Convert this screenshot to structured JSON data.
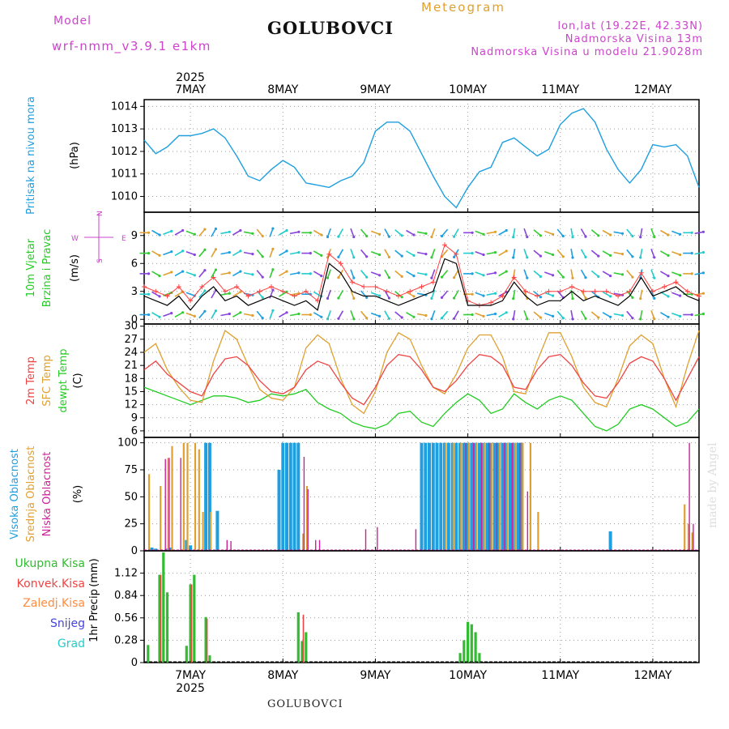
{
  "header": {
    "model_label": "Model",
    "model_name": "wrf-nmm_v3.9.1  e1km",
    "title": "GOLUBOVCI",
    "meteogram": "Meteogram",
    "lonlat": "lon,lat (19.22E, 42.33N)",
    "elevation": "Nadmorska Visina 13m",
    "model_elevation": "Nadmorska Visina u modelu 21.9028m",
    "footer_title": "GOLUBOVCI",
    "credit": "made by Angel"
  },
  "colors": {
    "pressure": "#1e9fe0",
    "wind_speed": "#000000",
    "wind_gust": "#ff4040",
    "temp2m": "#ee4444",
    "sfc_temp": "#e0a030",
    "dewpoint": "#22cc22",
    "cloud_high": "#1e9fe0",
    "cloud_mid": "#e0a030",
    "cloud_low": "#cc2299",
    "rain_total": "#33bb33",
    "rain_conv": "#ee4444",
    "frz": "#ff8c40",
    "snow": "#4444dd",
    "hail": "#22cccc",
    "ylabel_magenta": "#cc44cc"
  },
  "chart_data": [
    {
      "type": "line",
      "panel": "pressure",
      "ylabel_main": "Pritisak na nivou mora",
      "ylabel_unit": "(hPa)",
      "yticks": [
        1010,
        1011,
        1012,
        1013,
        1014
      ],
      "ylim": [
        1009.3,
        1014.3
      ],
      "xlim": [
        0,
        144
      ],
      "x_top_year": "2025",
      "x_ticks": [
        {
          "x": 12,
          "label": "7MAY"
        },
        {
          "x": 36,
          "label": "8MAY"
        },
        {
          "x": 60,
          "label": "9MAY"
        },
        {
          "x": 84,
          "label": "10MAY"
        },
        {
          "x": 108,
          "label": "11MAY"
        },
        {
          "x": 132,
          "label": "12MAY"
        }
      ],
      "x": [
        0,
        3,
        6,
        9,
        12,
        15,
        18,
        21,
        24,
        27,
        30,
        33,
        36,
        39,
        42,
        45,
        48,
        51,
        54,
        57,
        60,
        63,
        66,
        69,
        72,
        75,
        78,
        81,
        84,
        87,
        90,
        93,
        96,
        99,
        102,
        105,
        108,
        111,
        114,
        117,
        120,
        123,
        126,
        129,
        132,
        135,
        138,
        141,
        144
      ],
      "values": [
        1012.5,
        1011.9,
        1012.2,
        1012.7,
        1012.7,
        1012.8,
        1013.0,
        1012.6,
        1011.8,
        1010.9,
        1010.7,
        1011.2,
        1011.6,
        1011.3,
        1010.6,
        1010.5,
        1010.4,
        1010.7,
        1010.9,
        1011.5,
        1012.9,
        1013.3,
        1013.3,
        1012.9,
        1011.9,
        1010.9,
        1010.0,
        1009.5,
        1010.4,
        1011.1,
        1011.3,
        1012.4,
        1012.6,
        1012.2,
        1011.8,
        1012.1,
        1013.2,
        1013.7,
        1013.9,
        1013.3,
        1012.1,
        1011.2,
        1010.6,
        1011.2,
        1012.3,
        1012.2,
        1012.3,
        1011.8,
        1010.4
      ]
    },
    {
      "type": "line",
      "panel": "wind",
      "ylabel_main": "10m Vjetar",
      "ylabel_sub": "Brzina i Pravac",
      "ylabel_unit": "(m/s)",
      "compass": {
        "n": "N",
        "w": "W",
        "e": "E",
        "s": "S"
      },
      "yticks": [
        0,
        3,
        6,
        9
      ],
      "ylim": [
        -0.5,
        11.5
      ],
      "xlim": [
        0,
        144
      ],
      "series": [
        {
          "name": "speed",
          "x": [
            0,
            3,
            6,
            9,
            12,
            15,
            18,
            21,
            24,
            27,
            30,
            33,
            36,
            39,
            42,
            45,
            48,
            51,
            54,
            57,
            60,
            63,
            66,
            69,
            72,
            75,
            78,
            81,
            84,
            87,
            90,
            93,
            96,
            99,
            102,
            105,
            108,
            111,
            114,
            117,
            120,
            123,
            126,
            129,
            132,
            135,
            138,
            141,
            144
          ],
          "values": [
            2.5,
            2.0,
            1.5,
            2.5,
            1.0,
            2.5,
            3.5,
            2.0,
            2.5,
            1.5,
            2.0,
            2.5,
            2.0,
            1.5,
            2.0,
            1.0,
            6.0,
            5.0,
            3.0,
            2.5,
            2.5,
            2.0,
            1.5,
            2.0,
            2.5,
            3.0,
            6.5,
            6.0,
            1.5,
            1.5,
            1.5,
            2.0,
            4.0,
            2.5,
            1.5,
            2.0,
            2.0,
            3.0,
            2.0,
            2.5,
            2.0,
            1.5,
            2.5,
            4.5,
            2.5,
            3.0,
            3.5,
            2.5,
            2.0
          ]
        },
        {
          "name": "gust",
          "x": [
            0,
            3,
            6,
            9,
            12,
            15,
            18,
            21,
            24,
            27,
            30,
            33,
            36,
            39,
            42,
            45,
            48,
            51,
            54,
            57,
            60,
            63,
            66,
            69,
            72,
            75,
            78,
            81,
            84,
            87,
            90,
            93,
            96,
            99,
            102,
            105,
            108,
            111,
            114,
            117,
            120,
            123,
            126,
            129,
            132,
            135,
            138,
            141,
            144
          ],
          "values": [
            3.5,
            3.0,
            2.5,
            3.5,
            2.0,
            3.5,
            4.5,
            3.0,
            3.5,
            2.5,
            3.0,
            3.5,
            3.0,
            2.5,
            3.0,
            2.0,
            7.0,
            6.0,
            4.0,
            3.5,
            3.5,
            3.0,
            2.5,
            3.0,
            3.5,
            4.0,
            8.0,
            7.0,
            2.0,
            1.5,
            1.8,
            2.5,
            4.5,
            3.0,
            2.5,
            3.0,
            3.0,
            3.5,
            3.0,
            3.0,
            3.0,
            2.5,
            3.0,
            5.0,
            3.0,
            3.5,
            4.0,
            3.0,
            2.5
          ]
        }
      ],
      "direction_deg": [
        90,
        120,
        70,
        60,
        110,
        40,
        30,
        80,
        60,
        100,
        140,
        20,
        60,
        80,
        90,
        120,
        200,
        210,
        160,
        140,
        110,
        150,
        130,
        120,
        100,
        200,
        220,
        210,
        90,
        110,
        80,
        60,
        190,
        160,
        130,
        110,
        140,
        170,
        150,
        130,
        120,
        100,
        140,
        190,
        160,
        120,
        110,
        90,
        80
      ]
    },
    {
      "type": "line",
      "panel": "temperature",
      "ylabel_main": "2m Temp",
      "ylabel_sub": "SFC Temp",
      "ylabel_sub2": "dewpt Temp",
      "ylabel_unit": "(C)",
      "yticks": [
        6,
        9,
        12,
        15,
        18,
        21,
        24,
        27,
        30
      ],
      "ylim": [
        4.5,
        30.5
      ],
      "xlim": [
        0,
        144
      ],
      "series": [
        {
          "name": "2m Temp",
          "x": [
            0,
            3,
            6,
            9,
            12,
            15,
            18,
            21,
            24,
            27,
            30,
            33,
            36,
            39,
            42,
            45,
            48,
            51,
            54,
            57,
            60,
            63,
            66,
            69,
            72,
            75,
            78,
            81,
            84,
            87,
            90,
            93,
            96,
            99,
            102,
            105,
            108,
            111,
            114,
            117,
            120,
            123,
            126,
            129,
            132,
            135,
            138,
            141,
            144
          ],
          "values": [
            20,
            22,
            19,
            17,
            15,
            14,
            19,
            22.5,
            23,
            21,
            17.5,
            15,
            14.5,
            16,
            20,
            22,
            21,
            17,
            13.5,
            12,
            16,
            21,
            23.5,
            23,
            20,
            16,
            15,
            17.5,
            21,
            23.5,
            23,
            21,
            16,
            15.5,
            20,
            23,
            23.5,
            21,
            17,
            14,
            13.5,
            17,
            21.5,
            23,
            22,
            18,
            13,
            18,
            23
          ]
        },
        {
          "name": "SFC Temp",
          "x": [
            0,
            3,
            6,
            9,
            12,
            15,
            18,
            21,
            24,
            27,
            30,
            33,
            36,
            39,
            42,
            45,
            48,
            51,
            54,
            57,
            60,
            63,
            66,
            69,
            72,
            75,
            78,
            81,
            84,
            87,
            90,
            93,
            96,
            99,
            102,
            105,
            108,
            111,
            114,
            117,
            120,
            123,
            126,
            129,
            132,
            135,
            138,
            141,
            144
          ],
          "values": [
            24,
            26,
            20,
            16,
            13,
            12.5,
            22,
            29,
            27,
            21,
            15.5,
            13.5,
            13,
            16,
            25,
            28,
            26,
            18,
            12,
            10,
            15,
            24,
            28.5,
            27,
            21,
            16,
            14.5,
            19,
            25,
            28,
            28,
            23,
            15,
            14.5,
            22,
            28.5,
            28.5,
            23,
            16,
            12.5,
            11.5,
            18,
            25.5,
            28,
            26,
            18,
            11.5,
            21,
            29
          ]
        },
        {
          "name": "dewpt Temp",
          "x": [
            0,
            3,
            6,
            9,
            12,
            15,
            18,
            21,
            24,
            27,
            30,
            33,
            36,
            39,
            42,
            45,
            48,
            51,
            54,
            57,
            60,
            63,
            66,
            69,
            72,
            75,
            78,
            81,
            84,
            87,
            90,
            93,
            96,
            99,
            102,
            105,
            108,
            111,
            114,
            117,
            120,
            123,
            126,
            129,
            132,
            135,
            138,
            141,
            144
          ],
          "values": [
            16,
            15,
            14,
            13,
            12,
            13,
            14,
            14,
            13.5,
            12.5,
            13,
            14.5,
            14,
            14.5,
            15.5,
            12.5,
            11,
            10,
            8,
            7,
            6.5,
            7.5,
            10,
            10.5,
            8,
            7,
            10,
            12.5,
            14.5,
            13,
            10,
            11,
            14.5,
            12.5,
            11,
            13,
            14,
            13,
            10,
            7,
            6,
            7.5,
            11,
            12,
            11,
            9,
            7,
            8,
            11
          ]
        }
      ]
    },
    {
      "type": "bar",
      "panel": "clouds",
      "ylabel_main": "Visoka Oblacnost",
      "ylabel_sub": "Srednja Oblacnost",
      "ylabel_sub2": "Niska Oblacnost",
      "ylabel_unit": "(%)",
      "yticks": [
        0,
        25,
        50,
        75,
        100
      ],
      "ylim": [
        0,
        105
      ],
      "xlim": [
        0,
        144
      ],
      "series": [
        {
          "name": "Visoka Oblacnost",
          "x": [
            1,
            2,
            3,
            6,
            7,
            11,
            12,
            16,
            17,
            19,
            35,
            36,
            37,
            38,
            39,
            40,
            72,
            73,
            74,
            75,
            76,
            77,
            78,
            79,
            80,
            81,
            82,
            83,
            84,
            85,
            86,
            87,
            88,
            89,
            90,
            91,
            92,
            93,
            94,
            95,
            96,
            97,
            98,
            121,
            139
          ],
          "values": [
            0,
            3,
            2,
            2,
            3,
            10,
            5,
            100,
            100,
            37,
            75,
            100,
            100,
            100,
            100,
            100,
            100,
            100,
            100,
            100,
            100,
            100,
            100,
            100,
            100,
            100,
            100,
            100,
            100,
            100,
            100,
            100,
            100,
            100,
            100,
            100,
            100,
            100,
            100,
            100,
            100,
            100,
            100,
            18,
            0
          ]
        },
        {
          "name": "Srednja Oblacnost",
          "x": [
            1,
            4,
            5,
            6,
            7,
            9,
            10,
            11,
            13,
            14,
            15,
            17,
            41,
            42,
            78,
            80,
            82,
            84,
            86,
            88,
            90,
            92,
            94,
            96,
            98,
            100,
            102,
            140,
            141,
            142,
            143
          ],
          "values": [
            71,
            60,
            0,
            86,
            97,
            0,
            100,
            100,
            100,
            94,
            36,
            36,
            16,
            60,
            100,
            100,
            100,
            100,
            100,
            100,
            100,
            100,
            100,
            100,
            100,
            100,
            36,
            43,
            25,
            17,
            0
          ]
        },
        {
          "name": "Niska Oblacnost",
          "x": [
            5,
            6,
            9,
            21,
            22,
            41,
            42,
            44,
            45,
            57,
            60,
            70,
            83,
            85,
            87,
            89,
            91,
            93,
            95,
            97,
            99,
            141,
            142
          ],
          "values": [
            85,
            86,
            86,
            10,
            9,
            87,
            57,
            10,
            10,
            20,
            22,
            20,
            100,
            100,
            100,
            100,
            100,
            100,
            100,
            100,
            55,
            100,
            25
          ]
        }
      ]
    },
    {
      "type": "bar",
      "panel": "precip",
      "ylabel_main": "1hr Precip",
      "ylabel_unit": "(mm)",
      "legend": [
        "Ukupna Kisa",
        "Konvek.Kisa",
        "Zaledj.Kisa",
        "Snijeg",
        "Grad"
      ],
      "yticks": [
        0,
        0.28,
        0.56,
        0.84,
        1.12
      ],
      "ylim": [
        0,
        1.4
      ],
      "xlim": [
        0,
        144
      ],
      "x_bottom_year": "2025",
      "series": [
        {
          "name": "Ukupna Kisa",
          "x": [
            1,
            2,
            4,
            5,
            6,
            11,
            12,
            13,
            16,
            17,
            40,
            41,
            42,
            82,
            83,
            84,
            85,
            86,
            87
          ],
          "values": [
            0.22,
            0.0,
            1.1,
            1.38,
            0.88,
            0.21,
            0.98,
            1.1,
            0.57,
            0.09,
            0.63,
            0.27,
            0.38,
            0.12,
            0.28,
            0.51,
            0.48,
            0.38,
            0.12
          ]
        },
        {
          "name": "Konvek.Kisa",
          "x": [
            4,
            12,
            16,
            41
          ],
          "values": [
            1.1,
            0.98,
            0.55,
            0.6
          ]
        }
      ]
    }
  ]
}
